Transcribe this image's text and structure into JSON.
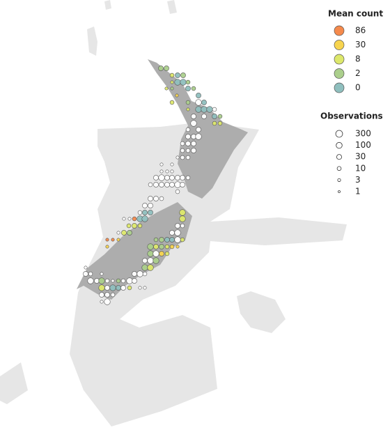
{
  "legend_mean": {
    "title": "Mean count",
    "levels": [
      {
        "value": 86,
        "color": "#f58a4c"
      },
      {
        "value": 30,
        "color": "#f7d44f"
      },
      {
        "value": 8,
        "color": "#dde86b"
      },
      {
        "value": 2,
        "color": "#abcf8c"
      },
      {
        "value": 0,
        "color": "#8fbfbe"
      }
    ]
  },
  "legend_obs": {
    "title": "Observations",
    "levels": [
      300,
      100,
      30,
      10,
      3,
      1
    ]
  },
  "points": [
    {
      "lon": 173.93,
      "lat": -34.94,
      "mean": 2,
      "obs": 30
    },
    {
      "lon": 174.17,
      "lat": -34.94,
      "mean": 2,
      "obs": 30
    },
    {
      "lon": 174.41,
      "lat": -35.24,
      "mean": 8,
      "obs": 10
    },
    {
      "lon": 174.65,
      "lat": -35.24,
      "mean": 0,
      "obs": 30
    },
    {
      "lon": 174.89,
      "lat": -35.24,
      "mean": 2,
      "obs": 30
    },
    {
      "lon": 174.41,
      "lat": -35.54,
      "mean": 8,
      "obs": 3
    },
    {
      "lon": 174.65,
      "lat": -35.54,
      "mean": 0,
      "obs": 100
    },
    {
      "lon": 174.89,
      "lat": -35.54,
      "mean": 0,
      "obs": 100
    },
    {
      "lon": 175.1,
      "lat": -35.54,
      "mean": 2,
      "obs": 10
    },
    {
      "lon": 174.17,
      "lat": -35.81,
      "mean": 8,
      "obs": 3
    },
    {
      "lon": 174.41,
      "lat": -35.81,
      "mean": 2,
      "obs": 3
    },
    {
      "lon": 175.1,
      "lat": -35.81,
      "mean": 0,
      "obs": 30
    },
    {
      "lon": 175.34,
      "lat": -35.81,
      "mean": 2,
      "obs": 10
    },
    {
      "lon": 175.55,
      "lat": -36.11,
      "mean": 0,
      "obs": 30
    },
    {
      "lon": 174.62,
      "lat": -36.11,
      "mean": 30,
      "obs": 3
    },
    {
      "lon": 174.41,
      "lat": -36.41,
      "mean": 8,
      "obs": 10
    },
    {
      "lon": 175.1,
      "lat": -36.41,
      "mean": 2,
      "obs": 10
    },
    {
      "lon": 175.55,
      "lat": -36.41,
      "mean": null,
      "obs": 100
    },
    {
      "lon": 175.79,
      "lat": -36.41,
      "mean": 0,
      "obs": 30
    },
    {
      "lon": 175.1,
      "lat": -36.71,
      "mean": 8,
      "obs": 3
    },
    {
      "lon": 175.55,
      "lat": -36.71,
      "mean": 0,
      "obs": 100
    },
    {
      "lon": 175.79,
      "lat": -36.71,
      "mean": 0,
      "obs": 100
    },
    {
      "lon": 176.03,
      "lat": -36.71,
      "mean": 0,
      "obs": 100
    },
    {
      "lon": 176.24,
      "lat": -36.71,
      "mean": null,
      "obs": 10
    },
    {
      "lon": 175.34,
      "lat": -37.01,
      "mean": null,
      "obs": 30
    },
    {
      "lon": 175.79,
      "lat": -37.01,
      "mean": null,
      "obs": 30
    },
    {
      "lon": 176.24,
      "lat": -37.01,
      "mean": 0,
      "obs": 30
    },
    {
      "lon": 176.48,
      "lat": -37.01,
      "mean": 2,
      "obs": 10
    },
    {
      "lon": 175.34,
      "lat": -37.31,
      "mean": null,
      "obs": 100
    },
    {
      "lon": 176.24,
      "lat": -37.31,
      "mean": 8,
      "obs": 10
    },
    {
      "lon": 176.48,
      "lat": -37.31,
      "mean": 8,
      "obs": 10
    },
    {
      "lon": 175.1,
      "lat": -37.58,
      "mean": null,
      "obs": 10
    },
    {
      "lon": 175.55,
      "lat": -37.58,
      "mean": null,
      "obs": 30
    },
    {
      "lon": 175.1,
      "lat": -37.88,
      "mean": null,
      "obs": 30
    },
    {
      "lon": 175.34,
      "lat": -37.88,
      "mean": null,
      "obs": 30
    },
    {
      "lon": 175.55,
      "lat": -37.88,
      "mean": null,
      "obs": 100
    },
    {
      "lon": 174.86,
      "lat": -38.18,
      "mean": null,
      "obs": 10
    },
    {
      "lon": 175.1,
      "lat": -38.18,
      "mean": null,
      "obs": 30
    },
    {
      "lon": 175.34,
      "lat": -38.18,
      "mean": null,
      "obs": 30
    },
    {
      "lon": 174.86,
      "lat": -38.48,
      "mean": null,
      "obs": 10
    },
    {
      "lon": 175.1,
      "lat": -38.48,
      "mean": null,
      "obs": 10
    },
    {
      "lon": 175.34,
      "lat": -38.48,
      "mean": null,
      "obs": 30
    },
    {
      "lon": 174.65,
      "lat": -38.78,
      "mean": null,
      "obs": 3
    },
    {
      "lon": 174.86,
      "lat": -38.78,
      "mean": null,
      "obs": 10
    },
    {
      "lon": 175.1,
      "lat": -38.78,
      "mean": null,
      "obs": 10
    },
    {
      "lon": 173.96,
      "lat": -39.08,
      "mean": null,
      "obs": 3
    },
    {
      "lon": 174.41,
      "lat": -39.08,
      "mean": null,
      "obs": 3
    },
    {
      "lon": 173.96,
      "lat": -39.38,
      "mean": null,
      "obs": 3
    },
    {
      "lon": 174.2,
      "lat": -39.38,
      "mean": null,
      "obs": 3
    },
    {
      "lon": 174.41,
      "lat": -39.38,
      "mean": null,
      "obs": 3
    },
    {
      "lon": 173.72,
      "lat": -39.65,
      "mean": null,
      "obs": 30
    },
    {
      "lon": 173.96,
      "lat": -39.65,
      "mean": null,
      "obs": 100
    },
    {
      "lon": 174.2,
      "lat": -39.65,
      "mean": null,
      "obs": 30
    },
    {
      "lon": 174.41,
      "lat": -39.65,
      "mean": null,
      "obs": 30
    },
    {
      "lon": 174.65,
      "lat": -39.65,
      "mean": null,
      "obs": 30
    },
    {
      "lon": 174.86,
      "lat": -39.65,
      "mean": null,
      "obs": 30
    },
    {
      "lon": 175.1,
      "lat": -39.65,
      "mean": null,
      "obs": 10
    },
    {
      "lon": 173.48,
      "lat": -39.95,
      "mean": null,
      "obs": 10
    },
    {
      "lon": 173.72,
      "lat": -39.95,
      "mean": null,
      "obs": 30
    },
    {
      "lon": 173.96,
      "lat": -39.95,
      "mean": null,
      "obs": 30
    },
    {
      "lon": 174.2,
      "lat": -39.95,
      "mean": null,
      "obs": 30
    },
    {
      "lon": 174.41,
      "lat": -39.95,
      "mean": null,
      "obs": 30
    },
    {
      "lon": 174.65,
      "lat": -39.95,
      "mean": null,
      "obs": 100
    },
    {
      "lon": 174.86,
      "lat": -39.95,
      "mean": null,
      "obs": 30
    },
    {
      "lon": 174.65,
      "lat": -40.25,
      "mean": null,
      "obs": 10
    },
    {
      "lon": 173.48,
      "lat": -40.55,
      "mean": null,
      "obs": 30
    },
    {
      "lon": 173.72,
      "lat": -40.55,
      "mean": null,
      "obs": 30
    },
    {
      "lon": 173.96,
      "lat": -40.55,
      "mean": null,
      "obs": 10
    },
    {
      "lon": 173.24,
      "lat": -40.85,
      "mean": null,
      "obs": 30
    },
    {
      "lon": 173.48,
      "lat": -40.85,
      "mean": null,
      "obs": 30
    },
    {
      "lon": 174.86,
      "lat": -41.15,
      "mean": 8,
      "obs": 100
    },
    {
      "lon": 173.03,
      "lat": -41.15,
      "mean": null,
      "obs": 10
    },
    {
      "lon": 173.24,
      "lat": -41.15,
      "mean": 0,
      "obs": 30
    },
    {
      "lon": 173.48,
      "lat": -41.15,
      "mean": 0,
      "obs": 30
    },
    {
      "lon": 172.34,
      "lat": -41.42,
      "mean": null,
      "obs": 3
    },
    {
      "lon": 172.58,
      "lat": -41.42,
      "mean": null,
      "obs": 3
    },
    {
      "lon": 172.79,
      "lat": -41.42,
      "mean": 86,
      "obs": 10
    },
    {
      "lon": 173.03,
      "lat": -41.42,
      "mean": 0,
      "obs": 100
    },
    {
      "lon": 173.24,
      "lat": -41.42,
      "mean": 0,
      "obs": 100
    },
    {
      "lon": 174.86,
      "lat": -41.42,
      "mean": 8,
      "obs": 100
    },
    {
      "lon": 172.55,
      "lat": -41.72,
      "mean": 8,
      "obs": 10
    },
    {
      "lon": 172.79,
      "lat": -41.72,
      "mean": 8,
      "obs": 30
    },
    {
      "lon": 173.03,
      "lat": -41.72,
      "mean": 8,
      "obs": 10
    },
    {
      "lon": 174.65,
      "lat": -41.72,
      "mean": null,
      "obs": 30
    },
    {
      "lon": 174.86,
      "lat": -41.72,
      "mean": null,
      "obs": 10
    },
    {
      "lon": 172.1,
      "lat": -42.02,
      "mean": null,
      "obs": 3
    },
    {
      "lon": 172.34,
      "lat": -42.02,
      "mean": 8,
      "obs": 30
    },
    {
      "lon": 172.58,
      "lat": -42.02,
      "mean": 2,
      "obs": 30
    },
    {
      "lon": 174.41,
      "lat": -42.02,
      "mean": null,
      "obs": 30
    },
    {
      "lon": 174.65,
      "lat": -42.02,
      "mean": null,
      "obs": 100
    },
    {
      "lon": 171.62,
      "lat": -42.32,
      "mean": 86,
      "obs": 3
    },
    {
      "lon": 171.86,
      "lat": -42.32,
      "mean": 86,
      "obs": 3
    },
    {
      "lon": 172.1,
      "lat": -42.32,
      "mean": 30,
      "obs": 3
    },
    {
      "lon": 173.72,
      "lat": -42.32,
      "mean": 2,
      "obs": 10
    },
    {
      "lon": 173.96,
      "lat": -42.32,
      "mean": 2,
      "obs": 30
    },
    {
      "lon": 174.2,
      "lat": -42.32,
      "mean": 0,
      "obs": 30
    },
    {
      "lon": 174.41,
      "lat": -42.32,
      "mean": 0,
      "obs": 30
    },
    {
      "lon": 174.65,
      "lat": -42.32,
      "mean": null,
      "obs": 100
    },
    {
      "lon": 174.86,
      "lat": -42.32,
      "mean": 8,
      "obs": 10
    },
    {
      "lon": 171.62,
      "lat": -42.62,
      "mean": 30,
      "obs": 3
    },
    {
      "lon": 173.48,
      "lat": -42.62,
      "mean": 2,
      "obs": 100
    },
    {
      "lon": 173.72,
      "lat": -42.62,
      "mean": 8,
      "obs": 30
    },
    {
      "lon": 173.96,
      "lat": -42.62,
      "mean": 2,
      "obs": 30
    },
    {
      "lon": 174.2,
      "lat": -42.62,
      "mean": 8,
      "obs": 10
    },
    {
      "lon": 174.41,
      "lat": -42.62,
      "mean": 30,
      "obs": 10
    },
    {
      "lon": 174.65,
      "lat": -42.62,
      "mean": 30,
      "obs": 3
    },
    {
      "lon": 173.48,
      "lat": -42.92,
      "mean": 2,
      "obs": 100
    },
    {
      "lon": 173.72,
      "lat": -42.92,
      "mean": null,
      "obs": 100
    },
    {
      "lon": 173.96,
      "lat": -42.92,
      "mean": 30,
      "obs": 30
    },
    {
      "lon": 174.2,
      "lat": -42.92,
      "mean": 8,
      "obs": 10
    },
    {
      "lon": 173.24,
      "lat": -43.22,
      "mean": null,
      "obs": 30
    },
    {
      "lon": 173.48,
      "lat": -43.22,
      "mean": null,
      "obs": 100
    },
    {
      "lon": 173.72,
      "lat": -43.22,
      "mean": 2,
      "obs": 100
    },
    {
      "lon": 170.69,
      "lat": -43.52,
      "mean": null,
      "obs": 3
    },
    {
      "lon": 173.24,
      "lat": -43.52,
      "mean": 2,
      "obs": 100
    },
    {
      "lon": 173.48,
      "lat": -43.52,
      "mean": 8,
      "obs": 100
    },
    {
      "lon": 170.69,
      "lat": -43.79,
      "mean": null,
      "obs": 30
    },
    {
      "lon": 170.9,
      "lat": -43.79,
      "mean": null,
      "obs": 10
    },
    {
      "lon": 171.38,
      "lat": -43.79,
      "mean": null,
      "obs": 3
    },
    {
      "lon": 172.79,
      "lat": -43.79,
      "mean": null,
      "obs": 30
    },
    {
      "lon": 173.03,
      "lat": -43.79,
      "mean": null,
      "obs": 100
    },
    {
      "lon": 173.24,
      "lat": -43.79,
      "mean": null,
      "obs": 10
    },
    {
      "lon": 170.9,
      "lat": -44.09,
      "mean": null,
      "obs": 100
    },
    {
      "lon": 171.17,
      "lat": -44.09,
      "mean": null,
      "obs": 30
    },
    {
      "lon": 171.38,
      "lat": -44.09,
      "mean": 2,
      "obs": 100
    },
    {
      "lon": 171.62,
      "lat": -44.09,
      "mean": null,
      "obs": 10
    },
    {
      "lon": 171.86,
      "lat": -44.09,
      "mean": null,
      "obs": 3
    },
    {
      "lon": 172.1,
      "lat": -44.09,
      "mean": 2,
      "obs": 10
    },
    {
      "lon": 172.31,
      "lat": -44.09,
      "mean": null,
      "obs": 10
    },
    {
      "lon": 172.58,
      "lat": -44.09,
      "mean": null,
      "obs": 100
    },
    {
      "lon": 172.79,
      "lat": -44.09,
      "mean": null,
      "obs": 30
    },
    {
      "lon": 171.38,
      "lat": -44.39,
      "mean": 8,
      "obs": 100
    },
    {
      "lon": 171.62,
      "lat": -44.39,
      "mean": null,
      "obs": 30
    },
    {
      "lon": 171.86,
      "lat": -44.39,
      "mean": 0,
      "obs": 100
    },
    {
      "lon": 172.1,
      "lat": -44.39,
      "mean": 0,
      "obs": 30
    },
    {
      "lon": 172.31,
      "lat": -44.39,
      "mean": null,
      "obs": 30
    },
    {
      "lon": 172.58,
      "lat": -44.39,
      "mean": 8,
      "obs": 10
    },
    {
      "lon": 173.03,
      "lat": -44.39,
      "mean": null,
      "obs": 3
    },
    {
      "lon": 173.24,
      "lat": -44.39,
      "mean": null,
      "obs": 3
    },
    {
      "lon": 171.38,
      "lat": -44.69,
      "mean": null,
      "obs": 30
    },
    {
      "lon": 171.62,
      "lat": -44.69,
      "mean": null,
      "obs": 30
    },
    {
      "lon": 171.86,
      "lat": -44.69,
      "mean": null,
      "obs": 10
    },
    {
      "lon": 171.38,
      "lat": -44.99,
      "mean": null,
      "obs": 3
    },
    {
      "lon": 171.62,
      "lat": -44.99,
      "mean": null,
      "obs": 100
    }
  ]
}
